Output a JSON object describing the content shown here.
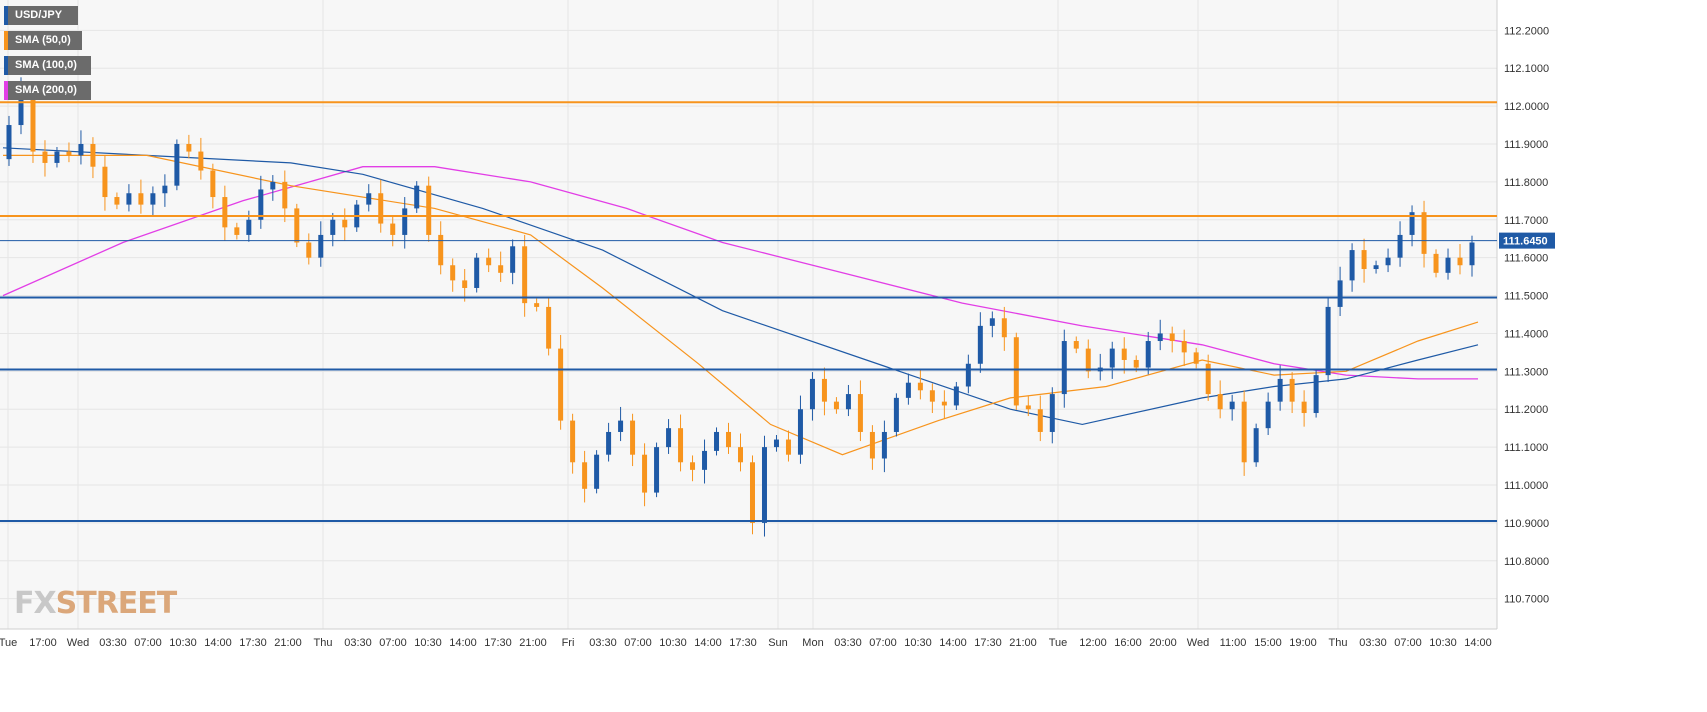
{
  "legend": [
    {
      "label": "USD/JPY",
      "color": "#1f5aa6"
    },
    {
      "label": "SMA (50,0)",
      "color": "#f7941d"
    },
    {
      "label": "SMA (100,0)",
      "color": "#1f5aa6"
    },
    {
      "label": "SMA (200,0)",
      "color": "#e23ee6"
    }
  ],
  "logo": {
    "part1": "FX",
    "part2": "STREET"
  },
  "colors": {
    "bull": "#1f5aa6",
    "bear": "#f7941d",
    "resistance": "#f7941d",
    "support": "#1f5aa6",
    "sma50": "#f7941d",
    "sma100": "#1f5aa6",
    "sma200": "#e23ee6",
    "grid": "#e6e6e6",
    "last_price_bg": "#1f5aa6"
  },
  "chart_data": {
    "type": "candlestick",
    "symbol": "USD/JPY",
    "ylim": [
      110.62,
      112.28
    ],
    "y_ticks": [
      "112.2000",
      "112.1000",
      "112.0000",
      "111.9000",
      "111.8000",
      "111.7000",
      "111.6000",
      "111.5000",
      "111.4000",
      "111.3000",
      "111.2000",
      "111.1000",
      "111.0000",
      "110.9000",
      "110.8000",
      "110.7000"
    ],
    "x_labels": [
      "Tue",
      "17:00",
      "Wed",
      "03:30",
      "07:00",
      "10:30",
      "14:00",
      "17:30",
      "21:00",
      "Thu",
      "03:30",
      "07:00",
      "10:30",
      "14:00",
      "17:30",
      "21:00",
      "Fri",
      "03:30",
      "07:00",
      "10:30",
      "14:00",
      "17:30",
      "Sun",
      "Mon",
      "03:30",
      "07:00",
      "10:30",
      "14:00",
      "17:30",
      "21:00",
      "Tue",
      "12:00",
      "16:00",
      "20:00",
      "Wed",
      "11:00",
      "15:00",
      "19:00",
      "Thu",
      "03:30",
      "07:00",
      "10:30",
      "14:00"
    ],
    "last_price": {
      "value": 111.645,
      "label": "111.6450"
    },
    "horizontal_levels": [
      {
        "value": 112.01,
        "kind": "resistance"
      },
      {
        "value": 111.71,
        "kind": "resistance"
      },
      {
        "value": 111.495,
        "kind": "support"
      },
      {
        "value": 111.305,
        "kind": "support"
      },
      {
        "value": 110.905,
        "kind": "support"
      }
    ],
    "price_path": [
      [
        0,
        111.86
      ],
      [
        1,
        111.95
      ],
      [
        2,
        112.04
      ],
      [
        3,
        111.88
      ],
      [
        4,
        111.85
      ],
      [
        5,
        111.88
      ],
      [
        6,
        111.87
      ],
      [
        7,
        111.9
      ],
      [
        8,
        111.84
      ],
      [
        9,
        111.76
      ],
      [
        10,
        111.74
      ],
      [
        11,
        111.77
      ],
      [
        12,
        111.74
      ],
      [
        13,
        111.77
      ],
      [
        14,
        111.79
      ],
      [
        15,
        111.9
      ],
      [
        16,
        111.88
      ],
      [
        17,
        111.83
      ],
      [
        18,
        111.76
      ],
      [
        19,
        111.68
      ],
      [
        20,
        111.66
      ],
      [
        21,
        111.7
      ],
      [
        22,
        111.78
      ],
      [
        23,
        111.8
      ],
      [
        24,
        111.73
      ],
      [
        25,
        111.64
      ],
      [
        26,
        111.6
      ],
      [
        27,
        111.66
      ],
      [
        28,
        111.7
      ],
      [
        29,
        111.68
      ],
      [
        30,
        111.74
      ],
      [
        31,
        111.77
      ],
      [
        32,
        111.69
      ],
      [
        33,
        111.66
      ],
      [
        34,
        111.73
      ],
      [
        35,
        111.79
      ],
      [
        36,
        111.66
      ],
      [
        37,
        111.58
      ],
      [
        38,
        111.54
      ],
      [
        39,
        111.52
      ],
      [
        40,
        111.6
      ],
      [
        41,
        111.58
      ],
      [
        42,
        111.56
      ],
      [
        43,
        111.63
      ],
      [
        44,
        111.48
      ],
      [
        45,
        111.47
      ],
      [
        46,
        111.36
      ],
      [
        47,
        111.17
      ],
      [
        48,
        111.06
      ],
      [
        49,
        110.99
      ],
      [
        50,
        111.08
      ],
      [
        51,
        111.14
      ],
      [
        52,
        111.17
      ],
      [
        53,
        111.08
      ],
      [
        54,
        110.98
      ],
      [
        55,
        111.1
      ],
      [
        56,
        111.15
      ],
      [
        57,
        111.06
      ],
      [
        58,
        111.04
      ],
      [
        59,
        111.09
      ],
      [
        60,
        111.14
      ],
      [
        61,
        111.1
      ],
      [
        62,
        111.06
      ],
      [
        63,
        110.9
      ],
      [
        64,
        111.1
      ],
      [
        65,
        111.12
      ],
      [
        66,
        111.08
      ],
      [
        67,
        111.2
      ],
      [
        68,
        111.28
      ],
      [
        69,
        111.22
      ],
      [
        70,
        111.2
      ],
      [
        71,
        111.24
      ],
      [
        72,
        111.14
      ],
      [
        73,
        111.07
      ],
      [
        74,
        111.14
      ],
      [
        75,
        111.23
      ],
      [
        76,
        111.27
      ],
      [
        77,
        111.25
      ],
      [
        78,
        111.22
      ],
      [
        79,
        111.21
      ],
      [
        80,
        111.26
      ],
      [
        81,
        111.32
      ],
      [
        82,
        111.42
      ],
      [
        83,
        111.44
      ],
      [
        84,
        111.39
      ],
      [
        85,
        111.21
      ],
      [
        86,
        111.2
      ],
      [
        87,
        111.14
      ],
      [
        88,
        111.24
      ],
      [
        89,
        111.38
      ],
      [
        90,
        111.36
      ],
      [
        91,
        111.3
      ],
      [
        92,
        111.31
      ],
      [
        93,
        111.36
      ],
      [
        94,
        111.33
      ],
      [
        95,
        111.31
      ],
      [
        96,
        111.38
      ],
      [
        97,
        111.4
      ],
      [
        98,
        111.38
      ],
      [
        99,
        111.35
      ],
      [
        100,
        111.32
      ],
      [
        101,
        111.24
      ],
      [
        102,
        111.2
      ],
      [
        103,
        111.22
      ],
      [
        104,
        111.06
      ],
      [
        105,
        111.15
      ],
      [
        106,
        111.22
      ],
      [
        107,
        111.28
      ],
      [
        108,
        111.22
      ],
      [
        109,
        111.19
      ],
      [
        110,
        111.29
      ],
      [
        111,
        111.47
      ],
      [
        112,
        111.54
      ],
      [
        113,
        111.62
      ],
      [
        114,
        111.57
      ],
      [
        115,
        111.58
      ],
      [
        116,
        111.6
      ],
      [
        117,
        111.66
      ],
      [
        118,
        111.72
      ],
      [
        119,
        111.61
      ],
      [
        120,
        111.56
      ],
      [
        121,
        111.6
      ],
      [
        122,
        111.58
      ],
      [
        123,
        111.64
      ]
    ],
    "sma50_path": [
      [
        0,
        111.87
      ],
      [
        12,
        111.87
      ],
      [
        24,
        111.79
      ],
      [
        36,
        111.73
      ],
      [
        44,
        111.66
      ],
      [
        50,
        111.52
      ],
      [
        58,
        111.32
      ],
      [
        64,
        111.16
      ],
      [
        70,
        111.08
      ],
      [
        78,
        111.17
      ],
      [
        84,
        111.23
      ],
      [
        92,
        111.26
      ],
      [
        100,
        111.33
      ],
      [
        106,
        111.29
      ],
      [
        112,
        111.3
      ],
      [
        118,
        111.38
      ],
      [
        123,
        111.43
      ]
    ],
    "sma100_path": [
      [
        0,
        111.89
      ],
      [
        12,
        111.87
      ],
      [
        24,
        111.85
      ],
      [
        30,
        111.82
      ],
      [
        40,
        111.73
      ],
      [
        50,
        111.62
      ],
      [
        60,
        111.46
      ],
      [
        72,
        111.33
      ],
      [
        84,
        111.2
      ],
      [
        90,
        111.16
      ],
      [
        100,
        111.23
      ],
      [
        106,
        111.26
      ],
      [
        112,
        111.28
      ],
      [
        118,
        111.33
      ],
      [
        123,
        111.37
      ]
    ],
    "sma200_path": [
      [
        0,
        111.5
      ],
      [
        10,
        111.64
      ],
      [
        20,
        111.75
      ],
      [
        30,
        111.84
      ],
      [
        36,
        111.84
      ],
      [
        44,
        111.8
      ],
      [
        52,
        111.73
      ],
      [
        60,
        111.64
      ],
      [
        70,
        111.56
      ],
      [
        80,
        111.48
      ],
      [
        90,
        111.42
      ],
      [
        100,
        111.37
      ],
      [
        106,
        111.32
      ],
      [
        112,
        111.29
      ],
      [
        118,
        111.28
      ],
      [
        123,
        111.28
      ]
    ]
  }
}
